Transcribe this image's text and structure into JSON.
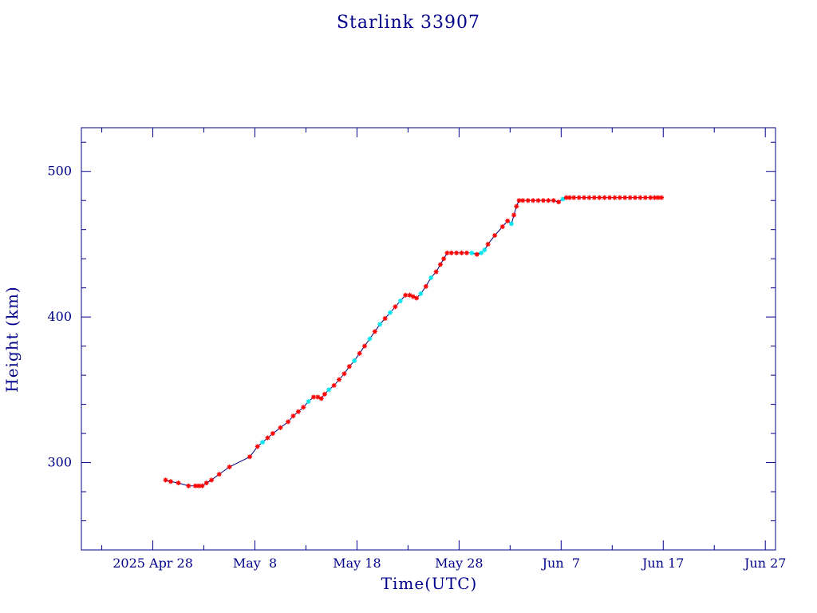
{
  "chart_data": {
    "type": "line",
    "title": "Starlink 33907",
    "xlabel": "Time(UTC)",
    "ylabel": "Height (km)",
    "x_type": "date",
    "xlim": [
      "2025-04-21",
      "2025-06-28"
    ],
    "ylim": [
      240,
      530
    ],
    "yticks": [
      300,
      400,
      500
    ],
    "xticks": [
      {
        "date": "2025-04-28",
        "label": "2025 Apr 28"
      },
      {
        "date": "2025-05-08",
        "label": "May  8"
      },
      {
        "date": "2025-05-18",
        "label": "May 18"
      },
      {
        "date": "2025-05-28",
        "label": "May 28"
      },
      {
        "date": "2025-06-07",
        "label": "Jun  7"
      },
      {
        "date": "2025-06-17",
        "label": "Jun 17"
      },
      {
        "date": "2025-06-27",
        "label": "Jun 27"
      }
    ],
    "grid": false,
    "colors": {
      "axis": "#00008b",
      "line": "#000080",
      "marker_red": "#ff0000",
      "marker_cyan": "#00e5ee"
    },
    "series": [
      {
        "values": [
          {
            "x": "2025-04-29",
            "y": 288,
            "m": "red"
          },
          {
            "x": "2025-04-29",
            "y": 287,
            "m": "red"
          },
          {
            "x": "2025-04-30",
            "y": 286,
            "m": "red"
          },
          {
            "x": "2025-05-01",
            "y": 284,
            "m": "red"
          },
          {
            "x": "2025-05-02",
            "y": 284,
            "m": "red"
          },
          {
            "x": "2025-05-02",
            "y": 284,
            "m": "red"
          },
          {
            "x": "2025-05-02",
            "y": 284,
            "m": "red"
          },
          {
            "x": "2025-05-03",
            "y": 286,
            "m": "red"
          },
          {
            "x": "2025-05-03",
            "y": 288,
            "m": "red"
          },
          {
            "x": "2025-05-04",
            "y": 292,
            "m": "red"
          },
          {
            "x": "2025-05-05",
            "y": 297,
            "m": "red"
          },
          {
            "x": "2025-05-07",
            "y": 304,
            "m": "red"
          },
          {
            "x": "2025-05-08",
            "y": 311,
            "m": "red"
          },
          {
            "x": "2025-05-08",
            "y": 314,
            "m": "cyan"
          },
          {
            "x": "2025-05-09",
            "y": 317,
            "m": "red"
          },
          {
            "x": "2025-05-09",
            "y": 320,
            "m": "red"
          },
          {
            "x": "2025-05-10",
            "y": 324,
            "m": "red"
          },
          {
            "x": "2025-05-11",
            "y": 328,
            "m": "red"
          },
          {
            "x": "2025-05-11",
            "y": 332,
            "m": "red"
          },
          {
            "x": "2025-05-12",
            "y": 335,
            "m": "red"
          },
          {
            "x": "2025-05-12",
            "y": 338,
            "m": "red"
          },
          {
            "x": "2025-05-13",
            "y": 342,
            "m": "cyan"
          },
          {
            "x": "2025-05-13",
            "y": 345,
            "m": "red"
          },
          {
            "x": "2025-05-14",
            "y": 345,
            "m": "red"
          },
          {
            "x": "2025-05-14",
            "y": 344,
            "m": "red"
          },
          {
            "x": "2025-05-14",
            "y": 347,
            "m": "red"
          },
          {
            "x": "2025-05-15",
            "y": 350,
            "m": "cyan"
          },
          {
            "x": "2025-05-15",
            "y": 353,
            "m": "red"
          },
          {
            "x": "2025-05-16",
            "y": 357,
            "m": "red"
          },
          {
            "x": "2025-05-16",
            "y": 361,
            "m": "red"
          },
          {
            "x": "2025-05-17",
            "y": 366,
            "m": "red"
          },
          {
            "x": "2025-05-17",
            "y": 370,
            "m": "cyan"
          },
          {
            "x": "2025-05-18",
            "y": 375,
            "m": "red"
          },
          {
            "x": "2025-05-18",
            "y": 380,
            "m": "red"
          },
          {
            "x": "2025-05-19",
            "y": 385,
            "m": "cyan"
          },
          {
            "x": "2025-05-19",
            "y": 390,
            "m": "red"
          },
          {
            "x": "2025-05-20",
            "y": 395,
            "m": "cyan"
          },
          {
            "x": "2025-05-20",
            "y": 399,
            "m": "red"
          },
          {
            "x": "2025-05-21",
            "y": 403,
            "m": "cyan"
          },
          {
            "x": "2025-05-21",
            "y": 407,
            "m": "red"
          },
          {
            "x": "2025-05-22",
            "y": 411,
            "m": "cyan"
          },
          {
            "x": "2025-05-22",
            "y": 415,
            "m": "red"
          },
          {
            "x": "2025-05-23",
            "y": 415,
            "m": "red"
          },
          {
            "x": "2025-05-23",
            "y": 414,
            "m": "red"
          },
          {
            "x": "2025-05-23",
            "y": 413,
            "m": "red"
          },
          {
            "x": "2025-05-24",
            "y": 416,
            "m": "cyan"
          },
          {
            "x": "2025-05-24",
            "y": 421,
            "m": "red"
          },
          {
            "x": "2025-05-25",
            "y": 427,
            "m": "cyan"
          },
          {
            "x": "2025-05-25",
            "y": 431,
            "m": "red"
          },
          {
            "x": "2025-05-26",
            "y": 436,
            "m": "red"
          },
          {
            "x": "2025-05-26",
            "y": 440,
            "m": "red"
          },
          {
            "x": "2025-05-26",
            "y": 444,
            "m": "red"
          },
          {
            "x": "2025-05-27",
            "y": 444,
            "m": "red"
          },
          {
            "x": "2025-05-27",
            "y": 444,
            "m": "red"
          },
          {
            "x": "2025-05-28",
            "y": 444,
            "m": "red"
          },
          {
            "x": "2025-05-28",
            "y": 444,
            "m": "red"
          },
          {
            "x": "2025-05-29",
            "y": 444,
            "m": "cyan"
          },
          {
            "x": "2025-05-29",
            "y": 443,
            "m": "red"
          },
          {
            "x": "2025-05-30",
            "y": 444,
            "m": "cyan"
          },
          {
            "x": "2025-05-30",
            "y": 446,
            "m": "cyan"
          },
          {
            "x": "2025-05-30",
            "y": 450,
            "m": "red"
          },
          {
            "x": "2025-05-31",
            "y": 456,
            "m": "red"
          },
          {
            "x": "2025-06-01",
            "y": 462,
            "m": "red"
          },
          {
            "x": "2025-06-01",
            "y": 466,
            "m": "red"
          },
          {
            "x": "2025-06-02",
            "y": 464,
            "m": "cyan"
          },
          {
            "x": "2025-06-02",
            "y": 470,
            "m": "red"
          },
          {
            "x": "2025-06-02",
            "y": 476,
            "m": "red"
          },
          {
            "x": "2025-06-02",
            "y": 480,
            "m": "red"
          },
          {
            "x": "2025-06-03",
            "y": 480,
            "m": "red"
          },
          {
            "x": "2025-06-03",
            "y": 480,
            "m": "red"
          },
          {
            "x": "2025-06-04",
            "y": 480,
            "m": "red"
          },
          {
            "x": "2025-06-04",
            "y": 480,
            "m": "red"
          },
          {
            "x": "2025-06-05",
            "y": 480,
            "m": "red"
          },
          {
            "x": "2025-06-05",
            "y": 480,
            "m": "red"
          },
          {
            "x": "2025-06-06",
            "y": 480,
            "m": "red"
          },
          {
            "x": "2025-06-06",
            "y": 479,
            "m": "red"
          },
          {
            "x": "2025-06-07",
            "y": 481,
            "m": "cyan"
          },
          {
            "x": "2025-06-07",
            "y": 482,
            "m": "red"
          },
          {
            "x": "2025-06-07",
            "y": 482,
            "m": "red"
          },
          {
            "x": "2025-06-08",
            "y": 482,
            "m": "red"
          },
          {
            "x": "2025-06-08",
            "y": 482,
            "m": "red"
          },
          {
            "x": "2025-06-09",
            "y": 482,
            "m": "red"
          },
          {
            "x": "2025-06-09",
            "y": 482,
            "m": "red"
          },
          {
            "x": "2025-06-10",
            "y": 482,
            "m": "red"
          },
          {
            "x": "2025-06-10",
            "y": 482,
            "m": "red"
          },
          {
            "x": "2025-06-11",
            "y": 482,
            "m": "red"
          },
          {
            "x": "2025-06-11",
            "y": 482,
            "m": "red"
          },
          {
            "x": "2025-06-12",
            "y": 482,
            "m": "red"
          },
          {
            "x": "2025-06-12",
            "y": 482,
            "m": "red"
          },
          {
            "x": "2025-06-13",
            "y": 482,
            "m": "red"
          },
          {
            "x": "2025-06-13",
            "y": 482,
            "m": "red"
          },
          {
            "x": "2025-06-14",
            "y": 482,
            "m": "red"
          },
          {
            "x": "2025-06-14",
            "y": 482,
            "m": "red"
          },
          {
            "x": "2025-06-15",
            "y": 482,
            "m": "red"
          },
          {
            "x": "2025-06-15",
            "y": 482,
            "m": "red"
          },
          {
            "x": "2025-06-16",
            "y": 482,
            "m": "red"
          },
          {
            "x": "2025-06-16",
            "y": 482,
            "m": "red"
          },
          {
            "x": "2025-06-16",
            "y": 482,
            "m": "red"
          }
        ]
      }
    ]
  }
}
